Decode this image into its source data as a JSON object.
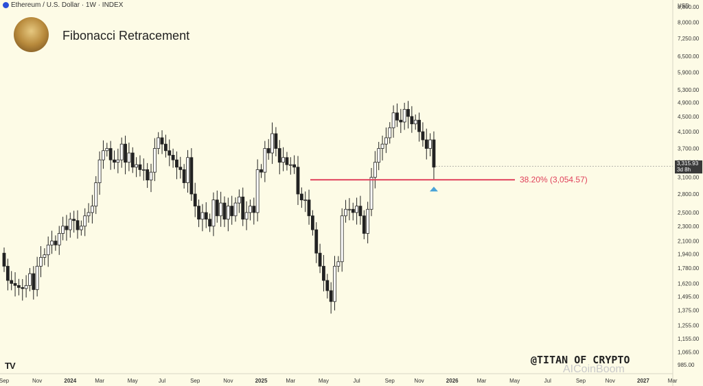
{
  "header": {
    "symbol_line": "Ethereum / U.S. Dollar · 1W · INDEX"
  },
  "title": "Fibonacci Retracement",
  "currency": "USD",
  "watermark": "@TITAN OF CRYPTO",
  "watermark2": "AICoinBoom",
  "logo_text": "TV",
  "fib": {
    "label": "38.20% (3,054.57)",
    "level": 3054.57,
    "color": "#e0405a"
  },
  "price_tag": {
    "price": "3,315.93",
    "countdown": "3d 8h"
  },
  "colors": {
    "up": "#ffffff",
    "down": "#222222",
    "fib": "#e0405a",
    "marker": "#4aa3d8"
  },
  "chart_data": {
    "type": "candlestick",
    "y_scale": "log",
    "ylim": [
      950,
      10000
    ],
    "y_ticks": [
      985,
      1065,
      1155,
      1255,
      1375,
      1495,
      1620,
      1780,
      1940,
      2100,
      2300,
      2500,
      2800,
      3100,
      3400,
      3700,
      4100,
      4500,
      4900,
      5300,
      5900,
      6500,
      7250,
      8000,
      8800
    ],
    "y_tick_labels": [
      "985.00",
      "1,065.00",
      "1,155.00",
      "1,255.00",
      "1,375.00",
      "1,495.00",
      "1,620.00",
      "1,780.00",
      "1,940.00",
      "2,100.00",
      "2,300.00",
      "2,500.00",
      "2,800.00",
      "3,100.00",
      "3,400.00",
      "3,700.00",
      "4,100.00",
      "4,500.00",
      "4,900.00",
      "5,300.00",
      "5,900.00",
      "6,500.00",
      "7,250.00",
      "8,000.00",
      "8,800.00"
    ],
    "x_labels": [
      {
        "t": "Sep",
        "i": 0
      },
      {
        "t": "Nov",
        "i": 9
      },
      {
        "t": "2024",
        "i": 18,
        "bold": true
      },
      {
        "t": "Mar",
        "i": 26
      },
      {
        "t": "May",
        "i": 35
      },
      {
        "t": "Jul",
        "i": 43
      },
      {
        "t": "Sep",
        "i": 52
      },
      {
        "t": "Nov",
        "i": 61
      },
      {
        "t": "2025",
        "i": 70,
        "bold": true
      },
      {
        "t": "Mar",
        "i": 78
      },
      {
        "t": "May",
        "i": 87
      },
      {
        "t": "Jul",
        "i": 96
      },
      {
        "t": "Sep",
        "i": 105
      },
      {
        "t": "Nov",
        "i": 113
      },
      {
        "t": "2026",
        "i": 122,
        "bold": true
      },
      {
        "t": "Mar",
        "i": 130
      },
      {
        "t": "May",
        "i": 139
      },
      {
        "t": "Jul",
        "i": 148
      },
      {
        "t": "Sep",
        "i": 157
      },
      {
        "t": "Nov",
        "i": 165
      },
      {
        "t": "2027",
        "i": 174,
        "bold": true
      },
      {
        "t": "Mar",
        "i": 182
      }
    ],
    "closes": [
      1800,
      1650,
      1620,
      1600,
      1580,
      1570,
      1600,
      1720,
      1560,
      1800,
      1900,
      1930,
      2050,
      2100,
      2050,
      2200,
      2300,
      2250,
      2400,
      2380,
      2250,
      2300,
      2450,
      2500,
      2600,
      3000,
      3450,
      3650,
      3700,
      3450,
      3400,
      3450,
      3800,
      3400,
      3600,
      3300,
      3350,
      3250,
      3250,
      3050,
      3200,
      3700,
      3950,
      3800,
      3650,
      3550,
      3450,
      3300,
      3250,
      3000,
      3500,
      2800,
      2600,
      2400,
      2500,
      2400,
      2300,
      2700,
      2450,
      2650,
      2400,
      2600,
      2450,
      2650,
      2750,
      2400,
      2500,
      2600,
      2500,
      3250,
      3200,
      3700,
      3600,
      4050,
      3700,
      3400,
      3500,
      3350,
      3350,
      3300,
      2800,
      2700,
      2700,
      2450,
      2250,
      1950,
      1800,
      1650,
      1550,
      1450,
      1800,
      1850,
      2450,
      2550,
      2550,
      2500,
      2600,
      2450,
      2200,
      2550,
      3100,
      3400,
      3700,
      3800,
      3950,
      4200,
      4600,
      4400,
      4350,
      4700,
      4500,
      4300,
      4400,
      4100,
      3900,
      3700,
      3900,
      3300
    ],
    "first_open": 1950,
    "fib_level": 3054.57,
    "last_price": 3315.93
  }
}
